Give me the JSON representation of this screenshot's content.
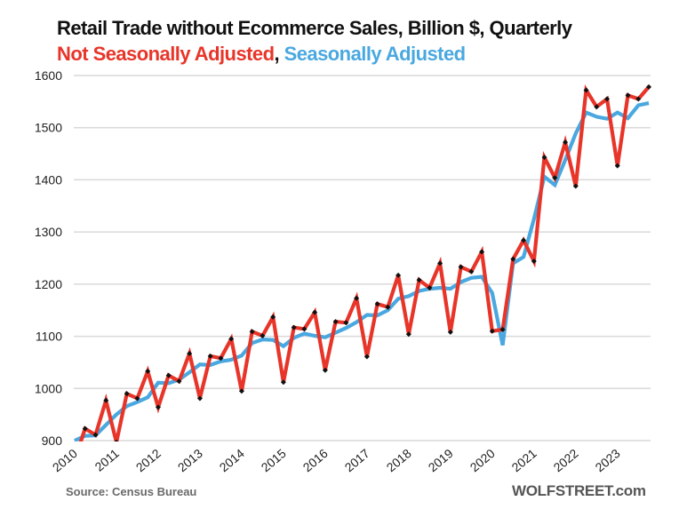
{
  "header": {
    "title": "Retail Trade without Ecommerce Sales, Billion $, Quarterly",
    "subtitle_nsa": "Not Seasonally Adjusted",
    "subtitle_sep": ",",
    "subtitle_sa": "Seasonally Adjusted"
  },
  "footer": {
    "source": "Source: Census Bureau",
    "brand": "WOLFSTREET.com"
  },
  "colors": {
    "nsa": "#E8352A",
    "sa": "#4AA8E0",
    "marker": "#111111",
    "grid": "#d9d9d9"
  },
  "chart_data": {
    "type": "line",
    "title": "Retail Trade without Ecommerce Sales, Billion $, Quarterly",
    "subtitle": "Not Seasonally Adjusted, Seasonally Adjusted",
    "xlabel": "",
    "ylabel": "",
    "ylim": [
      900,
      1600
    ],
    "yticks": [
      900,
      1000,
      1100,
      1200,
      1300,
      1400,
      1500,
      1600
    ],
    "grid": true,
    "legend": "in-title",
    "x_start": "2010 Q1",
    "x_end": "2023 Q4",
    "x_frequency": "quarterly",
    "xtick_labels": [
      "2010",
      "2011",
      "2012",
      "2013",
      "2014",
      "2015",
      "2016",
      "2017",
      "2018",
      "2019",
      "2020",
      "2021",
      "2022",
      "2023"
    ],
    "series": [
      {
        "name": "Not Seasonally Adjusted",
        "color": "#E8352A",
        "markers": true,
        "values": [
          862,
          923,
          911,
          977,
          897,
          990,
          981,
          1033,
          964,
          1025,
          1014,
          1067,
          981,
          1062,
          1058,
          1095,
          995,
          1109,
          1101,
          1137,
          1012,
          1117,
          1114,
          1146,
          1035,
          1128,
          1126,
          1173,
          1061,
          1162,
          1156,
          1217,
          1104,
          1208,
          1193,
          1240,
          1108,
          1233,
          1224,
          1262,
          1110,
          1113,
          1248,
          1284,
          1244,
          1443,
          1404,
          1472,
          1388,
          1572,
          1540,
          1555,
          1427,
          1562,
          1555,
          1578
        ]
      },
      {
        "name": "Seasonally Adjusted",
        "color": "#4AA8E0",
        "markers": false,
        "values": [
          900,
          909,
          910,
          930,
          950,
          966,
          974,
          983,
          1011,
          1010,
          1017,
          1031,
          1046,
          1045,
          1052,
          1055,
          1063,
          1087,
          1094,
          1093,
          1081,
          1097,
          1105,
          1101,
          1098,
          1107,
          1116,
          1127,
          1141,
          1140,
          1150,
          1172,
          1177,
          1187,
          1191,
          1193,
          1191,
          1204,
          1212,
          1214,
          1183,
          1083,
          1240,
          1252,
          1325,
          1406,
          1390,
          1438,
          1489,
          1529,
          1521,
          1517,
          1529,
          1518,
          1543,
          1547
        ]
      }
    ]
  }
}
